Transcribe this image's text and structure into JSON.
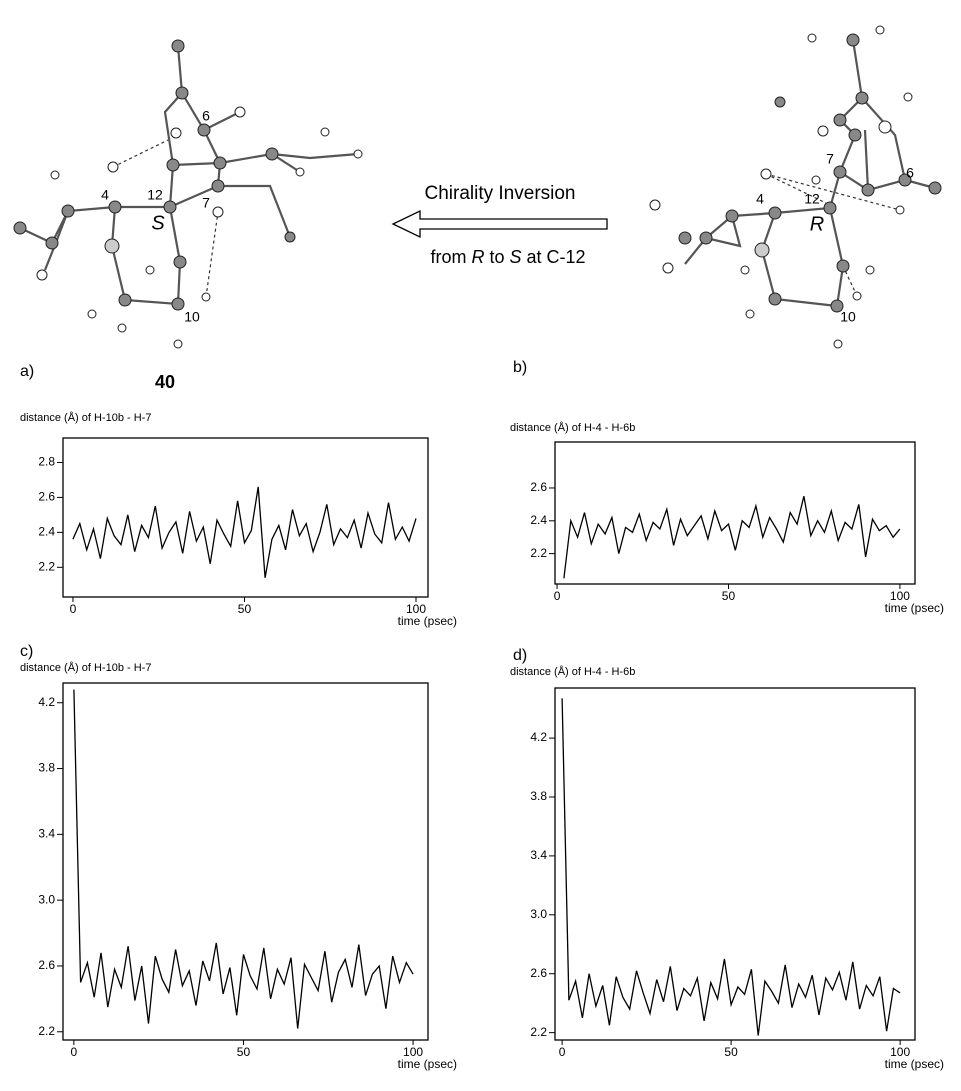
{
  "figure": {
    "compound": "40",
    "arrow_text": {
      "line1": "Chirality Inversion",
      "line2": [
        "from ",
        "R",
        " to ",
        "S",
        " at C-12"
      ]
    },
    "left_labels": [
      "6",
      "4",
      "12",
      "S",
      "7",
      "10"
    ],
    "right_labels": [
      "7",
      "6",
      "4",
      "12",
      "R",
      "10"
    ]
  },
  "chart_data": [
    {
      "type": "line",
      "panel": "a)",
      "y_label": "distance (Å) of H-10b - H-7",
      "x_label": "time (psec)",
      "color": "#000000",
      "xlim": [
        -2.9,
        103.5
      ],
      "ylim": [
        2.03,
        2.94
      ],
      "xticks": [
        0,
        50,
        100
      ],
      "yticks": [
        2.2,
        2.4,
        2.6,
        2.8
      ],
      "x": [
        0,
        2,
        4,
        6,
        8,
        10,
        12,
        14,
        16,
        18,
        20,
        22,
        24,
        26,
        28,
        30,
        32,
        34,
        36,
        38,
        40,
        42,
        44,
        46,
        48,
        50,
        52,
        54,
        56,
        58,
        60,
        62,
        64,
        66,
        68,
        70,
        72,
        74,
        76,
        78,
        80,
        82,
        84,
        86,
        88,
        90,
        92,
        94,
        96,
        98,
        100
      ],
      "values": [
        2.36,
        2.45,
        2.3,
        2.42,
        2.25,
        2.48,
        2.38,
        2.33,
        2.5,
        2.29,
        2.44,
        2.37,
        2.55,
        2.31,
        2.4,
        2.46,
        2.28,
        2.52,
        2.35,
        2.43,
        2.22,
        2.47,
        2.39,
        2.32,
        2.58,
        2.34,
        2.41,
        2.66,
        2.14,
        2.36,
        2.44,
        2.3,
        2.53,
        2.38,
        2.45,
        2.29,
        2.4,
        2.56,
        2.33,
        2.42,
        2.37,
        2.47,
        2.31,
        2.51,
        2.39,
        2.34,
        2.57,
        2.36,
        2.43,
        2.35,
        2.48
      ]
    },
    {
      "type": "line",
      "panel": "b)",
      "y_label": "distance (Å) of H-4 - H-6b",
      "x_label": "time (psec)",
      "color": "#000000",
      "xlim": [
        -0.6,
        104.4
      ],
      "ylim": [
        2.015,
        2.88
      ],
      "xticks": [
        0,
        50,
        100
      ],
      "yticks": [
        2.2,
        2.4,
        2.6
      ],
      "x": [
        2,
        4,
        6,
        8,
        10,
        12,
        14,
        16,
        18,
        20,
        22,
        24,
        26,
        28,
        30,
        32,
        34,
        36,
        38,
        40,
        42,
        44,
        46,
        48,
        50,
        52,
        54,
        56,
        58,
        60,
        62,
        64,
        66,
        68,
        70,
        72,
        74,
        76,
        78,
        80,
        82,
        84,
        86,
        88,
        90,
        92,
        94,
        96,
        98,
        100
      ],
      "values": [
        2.05,
        2.4,
        2.3,
        2.45,
        2.26,
        2.38,
        2.32,
        2.42,
        2.2,
        2.36,
        2.33,
        2.44,
        2.28,
        2.39,
        2.35,
        2.47,
        2.25,
        2.41,
        2.31,
        2.37,
        2.43,
        2.29,
        2.46,
        2.34,
        2.38,
        2.22,
        2.4,
        2.36,
        2.49,
        2.3,
        2.42,
        2.35,
        2.27,
        2.45,
        2.38,
        2.55,
        2.31,
        2.4,
        2.33,
        2.46,
        2.28,
        2.39,
        2.35,
        2.5,
        2.18,
        2.41,
        2.34,
        2.37,
        2.3,
        2.35
      ]
    },
    {
      "type": "line",
      "panel": "c)",
      "y_label": "distance (Å) of H-10b - H-7",
      "x_label": "time (psec)",
      "color": "#000000",
      "xlim": [
        -3.2,
        104.4
      ],
      "ylim": [
        2.15,
        4.32
      ],
      "xticks": [
        0,
        50,
        100
      ],
      "yticks": [
        2.2,
        2.6,
        {
          "value": 3,
          "label": "3.0"
        },
        3.4,
        3.8,
        4.2
      ],
      "x": [
        0,
        2,
        4,
        6,
        8,
        10,
        12,
        14,
        16,
        18,
        20,
        22,
        24,
        26,
        28,
        30,
        32,
        34,
        36,
        38,
        40,
        42,
        44,
        46,
        48,
        50,
        52,
        54,
        56,
        58,
        60,
        62,
        64,
        66,
        68,
        70,
        72,
        74,
        76,
        78,
        80,
        82,
        84,
        86,
        88,
        90,
        92,
        94,
        96,
        98,
        100
      ],
      "values": [
        4.28,
        2.5,
        2.62,
        2.41,
        2.68,
        2.35,
        2.58,
        2.47,
        2.72,
        2.39,
        2.6,
        2.25,
        2.66,
        2.52,
        2.44,
        2.7,
        2.48,
        2.57,
        2.36,
        2.63,
        2.51,
        2.74,
        2.43,
        2.59,
        2.3,
        2.67,
        2.54,
        2.46,
        2.71,
        2.4,
        2.58,
        2.49,
        2.65,
        2.22,
        2.61,
        2.53,
        2.45,
        2.69,
        2.38,
        2.56,
        2.64,
        2.47,
        2.73,
        2.42,
        2.55,
        2.6,
        2.34,
        2.66,
        2.5,
        2.62,
        2.55
      ]
    },
    {
      "type": "line",
      "panel": "d)",
      "y_label": "distance (Å) of H-4 - H-6b",
      "x_label": "time (psec)",
      "color": "#000000",
      "xlim": [
        -2.1,
        104.4
      ],
      "ylim": [
        2.15,
        4.54
      ],
      "xticks": [
        0,
        50,
        100
      ],
      "yticks": [
        2.2,
        2.6,
        {
          "value": 3,
          "label": "3.0"
        },
        3.4,
        3.8,
        4.2
      ],
      "x": [
        0,
        2,
        4,
        6,
        8,
        10,
        12,
        14,
        16,
        18,
        20,
        22,
        24,
        26,
        28,
        30,
        32,
        34,
        36,
        38,
        40,
        42,
        44,
        46,
        48,
        50,
        52,
        54,
        56,
        58,
        60,
        62,
        64,
        66,
        68,
        70,
        72,
        74,
        76,
        78,
        80,
        82,
        84,
        86,
        88,
        90,
        92,
        94,
        96,
        98,
        100
      ],
      "values": [
        4.47,
        2.42,
        2.55,
        2.3,
        2.6,
        2.38,
        2.52,
        2.25,
        2.58,
        2.44,
        2.36,
        2.62,
        2.47,
        2.33,
        2.56,
        2.41,
        2.65,
        2.35,
        2.5,
        2.45,
        2.57,
        2.28,
        2.54,
        2.43,
        2.7,
        2.39,
        2.51,
        2.46,
        2.63,
        2.18,
        2.55,
        2.48,
        2.4,
        2.66,
        2.37,
        2.53,
        2.44,
        2.59,
        2.32,
        2.57,
        2.49,
        2.61,
        2.42,
        2.68,
        2.36,
        2.52,
        2.45,
        2.58,
        2.21,
        2.5,
        2.47
      ]
    }
  ]
}
